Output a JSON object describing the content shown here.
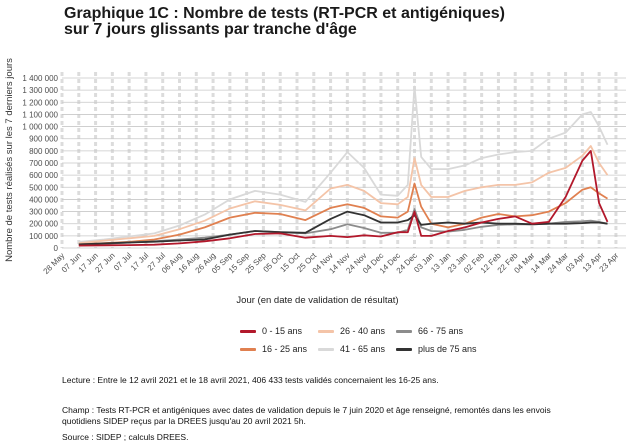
{
  "title_line1": "Graphique 1C : Nombre de tests (RT-PCR et antigéniques)",
  "title_line2": "sur 7 jours glissants par tranche d'âge",
  "chart_data": {
    "type": "line",
    "ylabel": "Nombre de tests réalisés sur les 7 derniers jours",
    "xlabel": "Jour (en date de validation de résultat)",
    "ylim": [
      0,
      1400000
    ],
    "yticks": [
      0,
      100000,
      200000,
      300000,
      400000,
      500000,
      600000,
      700000,
      800000,
      900000,
      1000000,
      1100000,
      1200000,
      1300000,
      1400000
    ],
    "ytick_labels": [
      "0",
      "100 000",
      "200 000",
      "300 000",
      "400 000",
      "500 000",
      "600 000",
      "700 000",
      "800 000",
      "900 000",
      "1 000 000",
      "1 100 000",
      "1 200 000",
      "1 300 000",
      "1 400 000"
    ],
    "x_tick_labels": [
      "28 May",
      "07 Jun",
      "17 Jun",
      "27 Jun",
      "07 Jul",
      "17 Jul",
      "27 Jul",
      "06 Aug",
      "16 Aug",
      "26 Aug",
      "05 Sep",
      "15 Sep",
      "25 Sep",
      "05 Oct",
      "15 Oct",
      "25 Oct",
      "04 Nov",
      "14 Nov",
      "24 Nov",
      "04 Dec",
      "14 Dec",
      "24 Dec",
      "03 Jan",
      "13 Jan",
      "23 Jan",
      "02 Feb",
      "12 Feb",
      "22 Feb",
      "04 Mar",
      "14 Mar",
      "24 Mar",
      "03 Apr",
      "13 Apr",
      "23 Apr"
    ],
    "x_day_offsets": [
      0,
      10,
      20,
      30,
      40,
      50,
      60,
      70,
      80,
      90,
      100,
      110,
      120,
      130,
      140,
      150,
      160,
      170,
      180,
      190,
      200,
      210,
      220,
      230,
      240,
      250,
      260,
      270,
      280,
      290,
      300,
      310,
      320,
      330
    ],
    "x_dates": [
      "2020-06-07",
      "2020-06-22",
      "2020-07-07",
      "2020-07-22",
      "2020-08-06",
      "2020-08-21",
      "2020-09-05",
      "2020-09-20",
      "2020-10-05",
      "2020-10-20",
      "2020-11-04",
      "2020-11-14",
      "2020-11-24",
      "2020-12-04",
      "2020-12-14",
      "2020-12-20",
      "2020-12-24",
      "2020-12-28",
      "2021-01-03",
      "2021-01-13",
      "2021-01-23",
      "2021-02-02",
      "2021-02-12",
      "2021-02-22",
      "2021-03-04",
      "2021-03-14",
      "2021-03-24",
      "2021-04-03",
      "2021-04-08",
      "2021-04-13",
      "2021-04-18"
    ],
    "series": [
      {
        "name": "0 - 15 ans",
        "color": "#b2182b",
        "values": [
          20000,
          22000,
          24000,
          27000,
          38000,
          55000,
          80000,
          115000,
          120000,
          85000,
          100000,
          90000,
          105000,
          95000,
          130000,
          130000,
          300000,
          100000,
          100000,
          140000,
          170000,
          210000,
          240000,
          260000,
          200000,
          215000,
          420000,
          720000,
          800000,
          370000,
          215000
        ]
      },
      {
        "name": "16 - 25 ans",
        "color": "#e08050",
        "values": [
          30000,
          40000,
          50000,
          70000,
          110000,
          170000,
          250000,
          290000,
          280000,
          230000,
          330000,
          360000,
          330000,
          260000,
          250000,
          300000,
          530000,
          340000,
          200000,
          170000,
          200000,
          250000,
          280000,
          260000,
          270000,
          300000,
          370000,
          480000,
          500000,
          450000,
          406433
        ]
      },
      {
        "name": "26 - 40 ans",
        "color": "#f4c4a8",
        "values": [
          40000,
          60000,
          80000,
          100000,
          155000,
          225000,
          325000,
          385000,
          355000,
          310000,
          490000,
          520000,
          470000,
          370000,
          360000,
          420000,
          740000,
          520000,
          420000,
          420000,
          470000,
          500000,
          520000,
          520000,
          540000,
          620000,
          660000,
          760000,
          840000,
          700000,
          600000
        ]
      },
      {
        "name": "41 - 65 ans",
        "color": "#d9d9d9",
        "values": [
          50000,
          70000,
          95000,
          120000,
          185000,
          275000,
          400000,
          470000,
          440000,
          380000,
          620000,
          790000,
          660000,
          440000,
          430000,
          520000,
          1330000,
          750000,
          650000,
          650000,
          680000,
          740000,
          770000,
          790000,
          800000,
          900000,
          950000,
          1100000,
          1120000,
          1000000,
          850000
        ]
      },
      {
        "name": "66 - 75 ans",
        "color": "#8c8c8c",
        "values": [
          30000,
          35000,
          45000,
          55000,
          70000,
          85000,
          110000,
          140000,
          130000,
          120000,
          155000,
          195000,
          165000,
          125000,
          125000,
          150000,
          320000,
          170000,
          140000,
          135000,
          150000,
          175000,
          190000,
          195000,
          195000,
          200000,
          215000,
          220000,
          225000,
          215000,
          200000
        ]
      },
      {
        "name": "plus de 75 ans",
        "color": "#333333",
        "values": [
          30000,
          38000,
          45000,
          52000,
          62000,
          70000,
          110000,
          140000,
          130000,
          125000,
          240000,
          300000,
          270000,
          210000,
          210000,
          230000,
          270000,
          190000,
          200000,
          210000,
          200000,
          210000,
          200000,
          200000,
          195000,
          200000,
          200000,
          205000,
          210000,
          210000,
          200000
        ]
      }
    ],
    "legend_position": "bottom"
  },
  "notes": {
    "lecture": "Lecture : Entre le 12 avril 2021 et le 18 avril 2021, 406 433 tests validés concernaient les 16-25 ans.",
    "champ_line1": "Champ : Tests RT-PCR et antigéniques avec dates de validation depuis le 7 juin 2020 et âge renseigné, remontés dans les envois",
    "champ_line2": "quotidiens SIDEP reçus par la DREES jusqu'au 20 avril 2021 5h.",
    "source": "Source : SIDEP ; calculs DREES."
  }
}
